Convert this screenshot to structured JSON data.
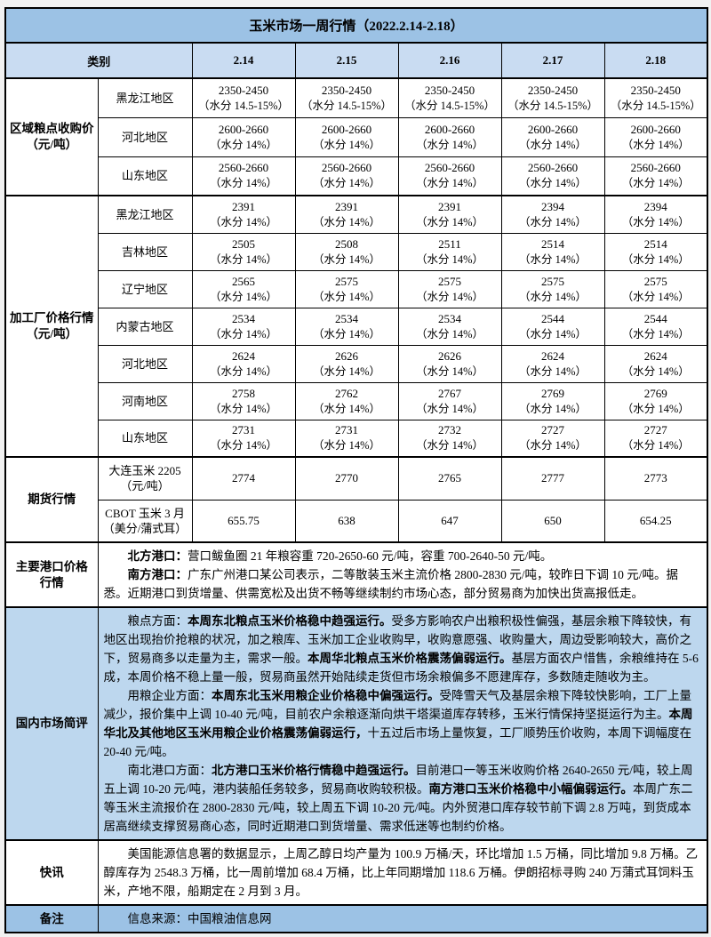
{
  "title": "玉米市场一周行情（2022.2.14-2.18）",
  "colors": {
    "page_bg": "#F1F1F1",
    "title_bg": "#9CC2E5",
    "header_bg": "#C9DCF2",
    "review_bg": "#BDD7EE",
    "note_bg": "#9CC2E5",
    "border": "#000000",
    "text": "#000000"
  },
  "header": {
    "category": "类别",
    "dates": [
      "2.14",
      "2.15",
      "2.16",
      "2.17",
      "2.18"
    ]
  },
  "price_sections": [
    {
      "label_lines": [
        "区域粮点收购价",
        "（元/吨）"
      ],
      "rows": [
        {
          "region": "黑龙江地区",
          "note": "（水分 14.5-15%）",
          "values": [
            "2350-2450",
            "2350-2450",
            "2350-2450",
            "2350-2450",
            "2350-2450"
          ]
        },
        {
          "region": "河北地区",
          "note": "（水分 14%）",
          "values": [
            "2600-2660",
            "2600-2660",
            "2600-2660",
            "2600-2660",
            "2600-2660"
          ]
        },
        {
          "region": "山东地区",
          "note": "（水分 14%）",
          "values": [
            "2560-2660",
            "2560-2660",
            "2560-2660",
            "2560-2660",
            "2560-2660"
          ]
        }
      ]
    },
    {
      "label_lines": [
        "加工厂价格行情",
        "（元/吨）"
      ],
      "rows": [
        {
          "region": "黑龙江地区",
          "note": "（水分 14%）",
          "values": [
            "2391",
            "2391",
            "2391",
            "2394",
            "2394"
          ]
        },
        {
          "region": "吉林地区",
          "note": "（水分 14%）",
          "values": [
            "2505",
            "2508",
            "2511",
            "2514",
            "2514"
          ]
        },
        {
          "region": "辽宁地区",
          "note": "（水分 14%）",
          "values": [
            "2565",
            "2575",
            "2575",
            "2575",
            "2575"
          ]
        },
        {
          "region": "内蒙古地区",
          "note": "（水分 14%）",
          "values": [
            "2534",
            "2534",
            "2534",
            "2544",
            "2544"
          ]
        },
        {
          "region": "河北地区",
          "note": "（水分 14%）",
          "values": [
            "2624",
            "2626",
            "2626",
            "2624",
            "2624"
          ]
        },
        {
          "region": "河南地区",
          "note": "（水分 14%）",
          "values": [
            "2758",
            "2762",
            "2767",
            "2769",
            "2769"
          ]
        },
        {
          "region": "山东地区",
          "note": "（水分 14%）",
          "values": [
            "2731",
            "2731",
            "2732",
            "2727",
            "2727"
          ]
        }
      ]
    },
    {
      "label_lines": [
        "期货行情"
      ],
      "rows": [
        {
          "region_lines": [
            "大连玉米 2205",
            "（元/吨）"
          ],
          "values": [
            "2774",
            "2770",
            "2765",
            "2777",
            "2773"
          ]
        },
        {
          "region_lines": [
            "CBOT 玉米 3 月",
            "（美分/蒲式耳）"
          ],
          "values": [
            "655.75",
            "638",
            "647",
            "650",
            "654.25"
          ]
        }
      ]
    }
  ],
  "text_sections": [
    {
      "label_lines": [
        "主要港口价格",
        "行情"
      ],
      "bg": "white",
      "paragraphs": [
        [
          {
            "t": "北方港口：",
            "b": true
          },
          {
            "t": "营口鲅鱼圈 21 年粮容重 720-2650-60 元/吨，容重 700-2640-50 元/吨。",
            "b": false
          }
        ],
        [
          {
            "t": "南方港口：",
            "b": true
          },
          {
            "t": "广东广州港口某公司表示，二等散装玉米主流价格 2800-2830 元/吨，较昨日下调 10 元/吨。据悉。近期港口到货增量、供需宽松及出货不畅等继续制约市场心态，部分贸易商为加快出货高报低走。",
            "b": false
          }
        ]
      ]
    },
    {
      "label_lines": [
        "国内市场简评"
      ],
      "bg": "review",
      "paragraphs": [
        [
          {
            "t": "粮点方面：",
            "b": false
          },
          {
            "t": "本周东北粮点玉米价格稳中趋强运行。",
            "b": true
          },
          {
            "t": "受多方影响农户出粮积极性偏强，基层余粮下降较快，有地区出现抬价抢粮的状况，加之粮库、玉米加工企业收购早，收购意愿强、收购量大，周边受影响较大，高价之下，贸易商多以走量为主，需求一般。",
            "b": false
          },
          {
            "t": "本周华北粮点玉米价格震荡偏弱运行。",
            "b": true
          },
          {
            "t": "基层方面农户惜售，余粮维持在 5-6 成，本周价格不稳上量一般，贸易商虽然开始陆续走货但市场余粮偏多不愿建库存，多数随走随收为主。",
            "b": false
          }
        ],
        [
          {
            "t": "用粮企业方面：",
            "b": false
          },
          {
            "t": "本周东北玉米用粮企业价格稳中偏强运行。",
            "b": true
          },
          {
            "t": "受降雪天气及基层余粮下降较快影响，工厂上量减少，报价集中上调 10-40 元/吨，目前农户余粮逐渐向烘干塔渠道库存转移，玉米行情保持坚挺运行为主。",
            "b": false
          },
          {
            "t": "本周华北及其他地区玉米用粮企业价格震荡偏弱运行，",
            "b": true
          },
          {
            "t": "十五过后市场上量恢复，工厂顺势压价收购，本周下调幅度在 20-40 元/吨。",
            "b": false
          }
        ],
        [
          {
            "t": "南北港口方面：",
            "b": false
          },
          {
            "t": "北方港口玉米价格行情稳中趋强运行。",
            "b": true
          },
          {
            "t": "目前港口一等玉米收购价格 2640-2650 元/吨，较上周五上调 10-20 元/吨，港内装船任务较多，贸易商收购较积极。",
            "b": false
          },
          {
            "t": "南方港口玉米价格稳中小幅偏弱运行。",
            "b": true
          },
          {
            "t": "本周广东二等玉米主流报价在 2800-2830 元/吨，较上周五下调 10-20 元/吨。内外贸港口库存较节前下调 2.8 万吨，到货成本居高继续支撑贸易商心态，同时近期港口到货增量、需求低迷等也制约价格。",
            "b": false
          }
        ]
      ]
    },
    {
      "label_lines": [
        "快讯"
      ],
      "bg": "white",
      "paragraphs": [
        [
          {
            "t": "美国能源信息署的数据显示，上周乙醇日均产量为 100.9 万桶/天，环比增加 1.5 万桶，同比增加 9.8 万桶。乙醇库存为 2548.3 万桶，比一周前增加 68.4 万桶，比上年同期增加 118.6 万桶。伊朗招标寻购 240 万蒲式耳饲料玉米，产地不限，船期定在 2 月到 3 月。",
            "b": false
          }
        ]
      ]
    },
    {
      "label_lines": [
        "备注"
      ],
      "bg": "note",
      "paragraphs": [
        [
          {
            "t": "信息来源：中国粮油信息网",
            "b": false
          }
        ]
      ]
    }
  ]
}
